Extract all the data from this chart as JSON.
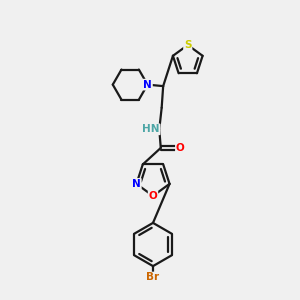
{
  "bg_color": "#f0f0f0",
  "bond_color": "#1a1a1a",
  "N_color": "#0000ff",
  "O_color": "#ff0000",
  "S_color": "#cccc00",
  "Br_color": "#cc6600",
  "H_color": "#4da6a6",
  "figsize": [
    3.0,
    3.0
  ],
  "dpi": 100,
  "xlim": [
    0,
    10
  ],
  "ylim": [
    0,
    10
  ]
}
